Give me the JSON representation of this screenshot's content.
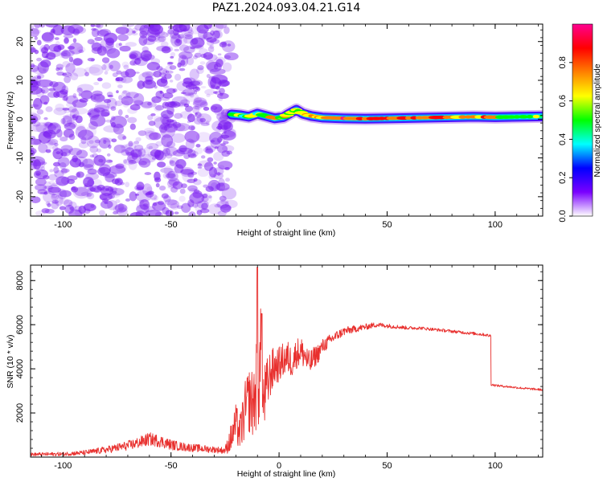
{
  "chart_data": [
    {
      "type": "heatmap",
      "title": "PAZ1.2024.093.04.21.G14",
      "xlabel": "Height of straight line (km)",
      "ylabel": "Frequency (Hz)",
      "xlim": [
        -115,
        122
      ],
      "ylim": [
        -25,
        24.5
      ],
      "xticks": [
        -100,
        -50,
        0,
        50,
        100
      ],
      "yticks": [
        -20,
        -10,
        0,
        10,
        20
      ],
      "xtick_labels": [
        "-100",
        "-50",
        "0",
        "50",
        "100"
      ],
      "ytick_labels": [
        "-20",
        "-10",
        "0",
        "10",
        "20"
      ],
      "noise_region_x": [
        -115,
        -22
      ],
      "noise_color": "#7a1ef0",
      "signal_start_x": -22,
      "signal_track": [
        {
          "x": -22,
          "freq": 1.2,
          "amp": 0.45
        },
        {
          "x": -18,
          "freq": 1.0,
          "amp": 0.5
        },
        {
          "x": -14,
          "freq": 0.6,
          "amp": 0.55
        },
        {
          "x": -10,
          "freq": 1.4,
          "amp": 0.5
        },
        {
          "x": -6,
          "freq": 0.8,
          "amp": 0.55
        },
        {
          "x": -2,
          "freq": 0.2,
          "amp": 0.6
        },
        {
          "x": 2,
          "freq": 0.5,
          "amp": 0.6
        },
        {
          "x": 5,
          "freq": 1.5,
          "amp": 0.6
        },
        {
          "x": 8,
          "freq": 2.4,
          "amp": 0.6
        },
        {
          "x": 11,
          "freq": 1.4,
          "amp": 0.65
        },
        {
          "x": 15,
          "freq": 0.8,
          "amp": 0.75
        },
        {
          "x": 20,
          "freq": 0.4,
          "amp": 0.8
        },
        {
          "x": 30,
          "freq": 0.2,
          "amp": 0.85
        },
        {
          "x": 40,
          "freq": 0.1,
          "amp": 0.85
        },
        {
          "x": 50,
          "freq": 0.2,
          "amp": 0.85
        },
        {
          "x": 60,
          "freq": 0.3,
          "amp": 0.85
        },
        {
          "x": 70,
          "freq": 0.4,
          "amp": 0.8
        },
        {
          "x": 80,
          "freq": 0.5,
          "amp": 0.8
        },
        {
          "x": 90,
          "freq": 0.6,
          "amp": 0.75
        },
        {
          "x": 100,
          "freq": 0.5,
          "amp": 0.65
        },
        {
          "x": 110,
          "freq": 0.6,
          "amp": 0.6
        },
        {
          "x": 122,
          "freq": 0.7,
          "amp": 0.6
        }
      ],
      "colorbar": {
        "label": "Normalized spectral amplitude",
        "range": [
          0,
          1
        ],
        "ticks": [
          0.0,
          0.2,
          0.4,
          0.6,
          0.8
        ],
        "tick_labels": [
          "0.0",
          "0.2",
          "0.4",
          "0.6",
          "0.8"
        ],
        "colormap": "gist_rainbow_r",
        "stops": [
          "#ffffff",
          "#7a00ff",
          "#0000ff",
          "#00ffff",
          "#00ff00",
          "#ffff00",
          "#ff8000",
          "#ff0000",
          "#ff0090"
        ]
      },
      "grid": false,
      "legend": "none"
    },
    {
      "type": "line",
      "xlabel": "Height of straight line (km)",
      "ylabel": "SNR (10 * v/v)",
      "xlim": [
        -115,
        122
      ],
      "ylim": [
        0,
        8700
      ],
      "xticks": [
        -100,
        -50,
        0,
        50,
        100
      ],
      "yticks": [
        2000,
        4000,
        6000,
        8000
      ],
      "xtick_labels": [
        "-100",
        "-50",
        "0",
        "50",
        "100"
      ],
      "ytick_labels": [
        "2000",
        "4000",
        "6000",
        "8000"
      ],
      "color": "#e8302e",
      "grid": false,
      "legend": "none",
      "series": [
        {
          "x": [
            -115,
            -100,
            -90,
            -80,
            -70,
            -65,
            -60,
            -55,
            -50,
            -45,
            -40,
            -35,
            -30,
            -25,
            -22,
            -20,
            -18,
            -16,
            -14,
            -12,
            -10,
            -9,
            -8,
            -6,
            -4,
            -2,
            0,
            2,
            4,
            6,
            8,
            10,
            12,
            14,
            16,
            18,
            20,
            25,
            30,
            35,
            40,
            45,
            50,
            55,
            60,
            65,
            70,
            75,
            80,
            85,
            90,
            95,
            97,
            98,
            100,
            105,
            110,
            115,
            122
          ],
          "y": [
            120,
            140,
            200,
            330,
            520,
            650,
            820,
            720,
            560,
            470,
            420,
            380,
            340,
            300,
            900,
            1500,
            1100,
            2000,
            2600,
            2400,
            3500,
            4200,
            2200,
            3000,
            3800,
            4100,
            4200,
            4400,
            4500,
            4300,
            4700,
            4800,
            4600,
            4200,
            4500,
            4700,
            5000,
            5400,
            5700,
            5800,
            5900,
            6000,
            5950,
            5900,
            5850,
            5850,
            5800,
            5750,
            5700,
            5650,
            5600,
            5550,
            5500,
            3300,
            3250,
            3200,
            3150,
            3100,
            3050
          ],
          "noise": [
            80,
            90,
            110,
            160,
            220,
            260,
            300,
            280,
            240,
            200,
            180,
            170,
            150,
            160,
            700,
            900,
            900,
            1300,
            1500,
            1600,
            2200,
            2600,
            1700,
            1400,
            1100,
            900,
            800,
            800,
            800,
            700,
            700,
            700,
            650,
            600,
            500,
            450,
            350,
            250,
            200,
            160,
            140,
            120,
            100,
            90,
            80,
            70,
            70,
            70,
            70,
            70,
            70,
            70,
            70,
            60,
            50,
            50,
            50,
            50,
            50
          ]
        }
      ]
    }
  ]
}
